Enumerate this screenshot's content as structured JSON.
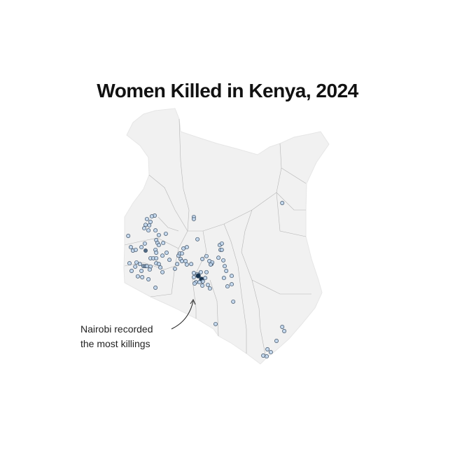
{
  "title": "Women Killed in Kenya, 2024",
  "annotation": {
    "line1": "Nairobi recorded",
    "line2": "the most killings"
  },
  "colors": {
    "land": "#f1f1f1",
    "borders": "#b5b5b5",
    "dot_light": "#bcd3ec",
    "dot_dark": "#0d2b4a",
    "dot_stroke": "#3d4f63"
  },
  "map_data": {
    "type": "dot-map",
    "region": "Kenya",
    "point_format": [
      "lon",
      "lat",
      "count"
    ],
    "points": [
      [
        35.16,
        0.93,
        1
      ],
      [
        35.05,
        0.9,
        1
      ],
      [
        34.86,
        0.8,
        1
      ],
      [
        35.0,
        0.69,
        1
      ],
      [
        34.81,
        0.58,
        1
      ],
      [
        34.95,
        0.56,
        1
      ],
      [
        34.76,
        0.45,
        1
      ],
      [
        34.92,
        0.37,
        1
      ],
      [
        35.19,
        0.37,
        1
      ],
      [
        34.14,
        0.16,
        1
      ],
      [
        35.32,
        0.19,
        1
      ],
      [
        35.59,
        0.24,
        1
      ],
      [
        35.22,
        0.0,
        1
      ],
      [
        35.27,
        -0.11,
        1
      ],
      [
        35.49,
        -0.11,
        1
      ],
      [
        35.32,
        -0.19,
        1
      ],
      [
        34.24,
        -0.27,
        1
      ],
      [
        34.32,
        -0.4,
        1
      ],
      [
        34.43,
        -0.37,
        1
      ],
      [
        34.65,
        -0.27,
        1
      ],
      [
        34.81,
        -0.4,
        3
      ],
      [
        34.78,
        -0.13,
        1
      ],
      [
        35.19,
        -0.37,
        1
      ],
      [
        35.22,
        -0.48,
        1
      ],
      [
        35.62,
        -0.48,
        1
      ],
      [
        35.46,
        -0.59,
        1
      ],
      [
        35.0,
        -0.69,
        1
      ],
      [
        35.11,
        -0.69,
        1
      ],
      [
        35.22,
        -0.69,
        1
      ],
      [
        34.19,
        -0.88,
        1
      ],
      [
        34.46,
        -0.85,
        1
      ],
      [
        34.59,
        -0.91,
        1
      ],
      [
        34.41,
        -1.01,
        1
      ],
      [
        34.73,
        -0.99,
        2
      ],
      [
        34.81,
        -0.99,
        2
      ],
      [
        34.86,
        -0.99,
        1
      ],
      [
        35.0,
        -1.01,
        1
      ],
      [
        34.97,
        -1.12,
        1
      ],
      [
        35.22,
        -0.88,
        1
      ],
      [
        35.32,
        -0.91,
        1
      ],
      [
        35.38,
        -1.04,
        1
      ],
      [
        34.27,
        -1.17,
        1
      ],
      [
        34.65,
        -1.17,
        1
      ],
      [
        35.46,
        -1.22,
        1
      ],
      [
        34.51,
        -1.38,
        1
      ],
      [
        34.68,
        -1.41,
        1
      ],
      [
        34.92,
        -1.49,
        1
      ],
      [
        35.19,
        -1.81,
        1
      ],
      [
        35.73,
        -0.75,
        1
      ],
      [
        35.94,
        -1.09,
        1
      ],
      [
        36.03,
        -0.91,
        1
      ],
      [
        36.08,
        -0.59,
        1
      ],
      [
        36.13,
        -0.51,
        1
      ],
      [
        36.21,
        -0.51,
        1
      ],
      [
        36.27,
        -0.32,
        1
      ],
      [
        36.4,
        -0.27,
        1
      ],
      [
        36.16,
        -0.72,
        1
      ],
      [
        36.21,
        -0.8,
        1
      ],
      [
        36.35,
        -0.8,
        1
      ],
      [
        36.4,
        -0.93,
        1
      ],
      [
        36.57,
        -0.91,
        1
      ],
      [
        36.67,
        0.88,
        1
      ],
      [
        36.67,
        0.8,
        1
      ],
      [
        36.81,
        0.03,
        1
      ],
      [
        37.0,
        -0.72,
        1
      ],
      [
        37.16,
        -0.61,
        1
      ],
      [
        37.27,
        -0.8,
        1
      ],
      [
        37.35,
        -0.91,
        1
      ],
      [
        37.38,
        -0.85,
        1
      ],
      [
        37.32,
        -0.93,
        1
      ],
      [
        37.62,
        -0.67,
        1
      ],
      [
        37.81,
        -0.77,
        1
      ],
      [
        37.67,
        -0.19,
        1
      ],
      [
        37.75,
        -0.13,
        1
      ],
      [
        37.7,
        -0.37,
        1
      ],
      [
        37.75,
        -0.37,
        1
      ],
      [
        37.86,
        -0.99,
        1
      ],
      [
        37.92,
        -1.17,
        1
      ],
      [
        37.83,
        -1.44,
        1
      ],
      [
        38.13,
        -1.36,
        1
      ],
      [
        38.13,
        -1.68,
        1
      ],
      [
        37.97,
        -1.76,
        1
      ],
      [
        36.67,
        -1.25,
        1
      ],
      [
        36.81,
        -1.3,
        1
      ],
      [
        36.94,
        -1.22,
        1
      ],
      [
        37.16,
        -1.22,
        1
      ],
      [
        36.67,
        -1.41,
        1
      ],
      [
        36.84,
        -1.36,
        4
      ],
      [
        36.97,
        -1.49,
        8
      ],
      [
        36.89,
        -1.6,
        1
      ],
      [
        37.02,
        -1.57,
        1
      ],
      [
        37.11,
        -1.44,
        1
      ],
      [
        36.75,
        -1.6,
        1
      ],
      [
        37.0,
        -1.73,
        1
      ],
      [
        37.21,
        -1.7,
        1
      ],
      [
        37.29,
        -1.84,
        1
      ],
      [
        36.7,
        -1.65,
        1
      ],
      [
        40.08,
        1.41,
        1
      ],
      [
        38.19,
        -2.34,
        1
      ],
      [
        37.51,
        -3.19,
        1
      ],
      [
        40.08,
        -3.3,
        1
      ],
      [
        40.16,
        -3.46,
        1
      ],
      [
        39.86,
        -3.83,
        1
      ],
      [
        39.51,
        -4.15,
        1
      ],
      [
        39.64,
        -4.26,
        1
      ],
      [
        39.35,
        -4.39,
        1
      ],
      [
        39.48,
        -4.42,
        1
      ]
    ]
  }
}
